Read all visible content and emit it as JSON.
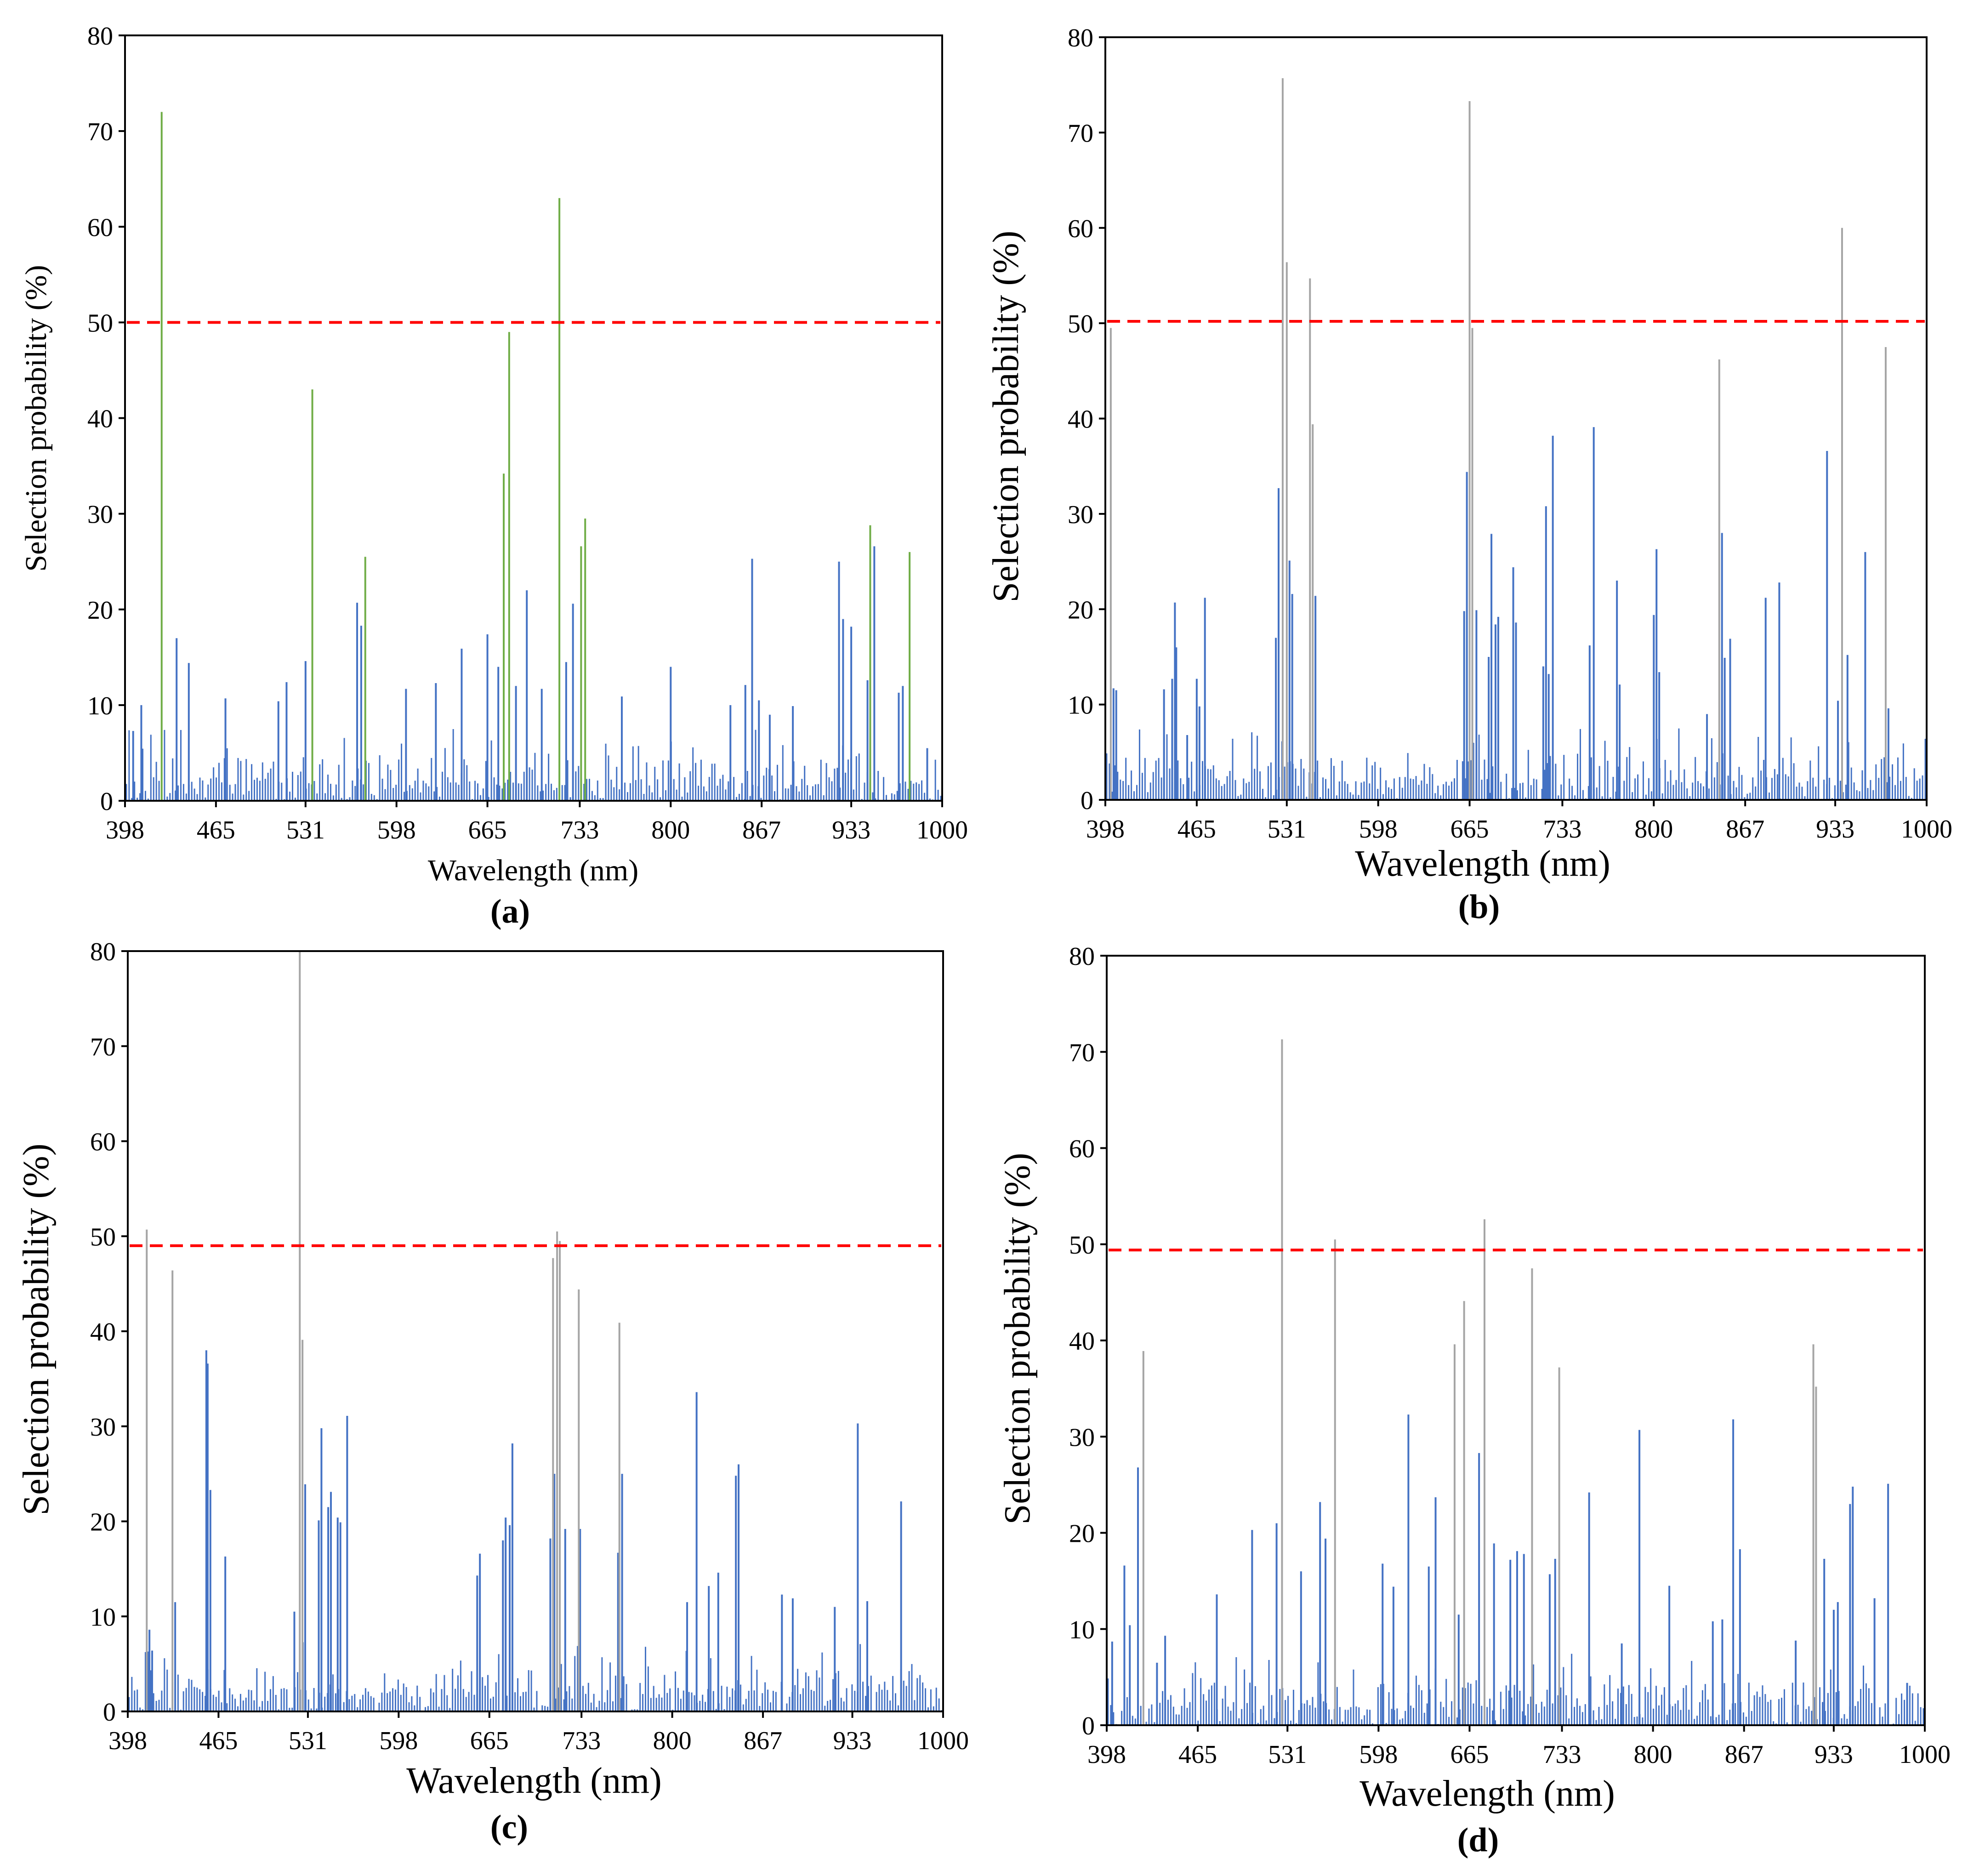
{
  "colors": {
    "regular_bar": "#4472C4",
    "a_highlight": "#70AD47",
    "gray_highlight": "#A5A5A5",
    "threshold": "#FF0000",
    "axis": "#000000"
  },
  "chart_data": [
    {
      "type": "bar",
      "panel_label": "(a)",
      "xlabel": "Wavelength (nm)",
      "ylabel": "Selection probability (%)",
      "xlim": [
        398,
        1000
      ],
      "ylim": [
        0,
        80
      ],
      "x_ticks": [
        398,
        465,
        531,
        598,
        665,
        733,
        800,
        867,
        933,
        1000
      ],
      "y_ticks": [
        0,
        10,
        20,
        30,
        40,
        50,
        60,
        70,
        80
      ],
      "threshold": 50,
      "highlight_color_key": "a_highlight",
      "highlights": [
        {
          "x": 425,
          "y": 72
        },
        {
          "x": 536,
          "y": 43
        },
        {
          "x": 575,
          "y": 25.5
        },
        {
          "x": 677,
          "y": 34.2
        },
        {
          "x": 681,
          "y": 49
        },
        {
          "x": 718,
          "y": 63
        },
        {
          "x": 734,
          "y": 26.6
        },
        {
          "x": 737,
          "y": 29.5
        },
        {
          "x": 947,
          "y": 28.8
        },
        {
          "x": 976,
          "y": 26
        }
      ],
      "peaks": [
        {
          "x": 398,
          "y": 7
        },
        {
          "x": 404,
          "y": 7.3
        },
        {
          "x": 410,
          "y": 10
        },
        {
          "x": 436,
          "y": 17
        },
        {
          "x": 445,
          "y": 14.4
        },
        {
          "x": 472,
          "y": 10.7
        },
        {
          "x": 511,
          "y": 10.4
        },
        {
          "x": 517,
          "y": 12.4
        },
        {
          "x": 531,
          "y": 14.6
        },
        {
          "x": 569,
          "y": 20.7
        },
        {
          "x": 572,
          "y": 18.3
        },
        {
          "x": 605,
          "y": 11.7
        },
        {
          "x": 627,
          "y": 12.3
        },
        {
          "x": 646,
          "y": 15.9
        },
        {
          "x": 665,
          "y": 17.4
        },
        {
          "x": 673,
          "y": 14
        },
        {
          "x": 686,
          "y": 12
        },
        {
          "x": 694,
          "y": 22
        },
        {
          "x": 705,
          "y": 11.7
        },
        {
          "x": 723,
          "y": 14.5
        },
        {
          "x": 728,
          "y": 20.6
        },
        {
          "x": 764,
          "y": 10.9
        },
        {
          "x": 800,
          "y": 14
        },
        {
          "x": 844,
          "y": 10
        },
        {
          "x": 855,
          "y": 12.1
        },
        {
          "x": 860,
          "y": 25.3
        },
        {
          "x": 865,
          "y": 10.5
        },
        {
          "x": 873,
          "y": 9
        },
        {
          "x": 890,
          "y": 9.9
        },
        {
          "x": 924,
          "y": 25
        },
        {
          "x": 927,
          "y": 19
        },
        {
          "x": 933,
          "y": 18.2
        },
        {
          "x": 945,
          "y": 12.6
        },
        {
          "x": 950,
          "y": 26.6
        },
        {
          "x": 968,
          "y": 11.3
        },
        {
          "x": 971,
          "y": 12
        },
        {
          "x": 989,
          "y": 5.5
        }
      ]
    },
    {
      "type": "bar",
      "panel_label": "(b)",
      "xlabel": "Wavelength (nm)",
      "ylabel": "Selection probability (%)",
      "xlim": [
        398,
        1000
      ],
      "ylim": [
        0,
        80
      ],
      "x_ticks": [
        398,
        465,
        531,
        598,
        665,
        733,
        800,
        867,
        933,
        1000
      ],
      "y_ticks": [
        0,
        10,
        20,
        30,
        40,
        50,
        60,
        70,
        80
      ],
      "threshold": 50.2,
      "highlight_color_key": "gray_highlight",
      "highlights": [
        {
          "x": 402,
          "y": 49.5
        },
        {
          "x": 528,
          "y": 75.7
        },
        {
          "x": 531,
          "y": 56.4
        },
        {
          "x": 548,
          "y": 54.7
        },
        {
          "x": 550,
          "y": 39.4
        },
        {
          "x": 665,
          "y": 73.3
        },
        {
          "x": 667,
          "y": 49.5
        },
        {
          "x": 848,
          "y": 46.2
        },
        {
          "x": 938,
          "y": 60
        },
        {
          "x": 970,
          "y": 47.5
        }
      ],
      "peaks": [
        {
          "x": 404,
          "y": 11.7
        },
        {
          "x": 406,
          "y": 11.5
        },
        {
          "x": 441,
          "y": 11.6
        },
        {
          "x": 447,
          "y": 12.7
        },
        {
          "x": 449,
          "y": 20.7
        },
        {
          "x": 450,
          "y": 16
        },
        {
          "x": 458,
          "y": 6.8
        },
        {
          "x": 465,
          "y": 12.7
        },
        {
          "x": 467,
          "y": 9.8
        },
        {
          "x": 471,
          "y": 21.2
        },
        {
          "x": 523,
          "y": 17
        },
        {
          "x": 525,
          "y": 32.7
        },
        {
          "x": 533,
          "y": 25.1
        },
        {
          "x": 535,
          "y": 21.6
        },
        {
          "x": 552,
          "y": 21.4
        },
        {
          "x": 661,
          "y": 19.8
        },
        {
          "x": 663,
          "y": 34.4
        },
        {
          "x": 670,
          "y": 19.9
        },
        {
          "x": 679,
          "y": 15
        },
        {
          "x": 681,
          "y": 27.9
        },
        {
          "x": 684,
          "y": 18.4
        },
        {
          "x": 686,
          "y": 19.2
        },
        {
          "x": 697,
          "y": 24.4
        },
        {
          "x": 699,
          "y": 18.6
        },
        {
          "x": 719,
          "y": 14
        },
        {
          "x": 721,
          "y": 30.8
        },
        {
          "x": 723,
          "y": 13.2
        },
        {
          "x": 726,
          "y": 38.2
        },
        {
          "x": 753,
          "y": 16.2
        },
        {
          "x": 756,
          "y": 39.1
        },
        {
          "x": 773,
          "y": 23
        },
        {
          "x": 775,
          "y": 12.1
        },
        {
          "x": 800,
          "y": 19.4
        },
        {
          "x": 802,
          "y": 26.3
        },
        {
          "x": 804,
          "y": 13.4
        },
        {
          "x": 839,
          "y": 9
        },
        {
          "x": 850,
          "y": 28
        },
        {
          "x": 852,
          "y": 14.9
        },
        {
          "x": 856,
          "y": 16.9
        },
        {
          "x": 882,
          "y": 21.2
        },
        {
          "x": 892,
          "y": 22.8
        },
        {
          "x": 927,
          "y": 36.6
        },
        {
          "x": 935,
          "y": 10.4
        },
        {
          "x": 942,
          "y": 15.2
        },
        {
          "x": 955,
          "y": 26
        },
        {
          "x": 972,
          "y": 9.6
        }
      ]
    },
    {
      "type": "bar",
      "panel_label": "(c)",
      "xlabel": "Wavelength (nm)",
      "ylabel": "Selection probability (%)",
      "xlim": [
        398,
        1000
      ],
      "ylim": [
        0,
        80
      ],
      "x_ticks": [
        398,
        465,
        531,
        598,
        665,
        733,
        800,
        867,
        933,
        1000
      ],
      "y_ticks": [
        0,
        10,
        20,
        30,
        40,
        50,
        60,
        70,
        80
      ],
      "threshold": 49,
      "highlight_color_key": "gray_highlight",
      "highlights": [
        {
          "x": 412,
          "y": 50.7
        },
        {
          "x": 431,
          "y": 46.4
        },
        {
          "x": 525,
          "y": 80
        },
        {
          "x": 527,
          "y": 39.1
        },
        {
          "x": 712,
          "y": 47.7
        },
        {
          "x": 715,
          "y": 50.5
        },
        {
          "x": 717,
          "y": 49.5
        },
        {
          "x": 731,
          "y": 44.4
        },
        {
          "x": 761,
          "y": 40.9
        }
      ],
      "peaks": [
        {
          "x": 414,
          "y": 8.6
        },
        {
          "x": 416,
          "y": 6.4
        },
        {
          "x": 433,
          "y": 11.5
        },
        {
          "x": 456,
          "y": 38
        },
        {
          "x": 457,
          "y": 36.6
        },
        {
          "x": 459,
          "y": 23.3
        },
        {
          "x": 470,
          "y": 16.3
        },
        {
          "x": 521,
          "y": 10.5
        },
        {
          "x": 529,
          "y": 23.9
        },
        {
          "x": 539,
          "y": 20.1
        },
        {
          "x": 541,
          "y": 29.8
        },
        {
          "x": 546,
          "y": 21.5
        },
        {
          "x": 548,
          "y": 23.1
        },
        {
          "x": 553,
          "y": 20.4
        },
        {
          "x": 555,
          "y": 19.9
        },
        {
          "x": 560,
          "y": 31.1
        },
        {
          "x": 656,
          "y": 14.3
        },
        {
          "x": 658,
          "y": 16.6
        },
        {
          "x": 675,
          "y": 18
        },
        {
          "x": 677,
          "y": 20.4
        },
        {
          "x": 680,
          "y": 19.6
        },
        {
          "x": 682,
          "y": 28.2
        },
        {
          "x": 710,
          "y": 18.2
        },
        {
          "x": 713,
          "y": 25
        },
        {
          "x": 721,
          "y": 19.2
        },
        {
          "x": 732,
          "y": 19.2
        },
        {
          "x": 760,
          "y": 16.7
        },
        {
          "x": 763,
          "y": 25
        },
        {
          "x": 811,
          "y": 11.5
        },
        {
          "x": 818,
          "y": 33.6
        },
        {
          "x": 827,
          "y": 13.2
        },
        {
          "x": 834,
          "y": 14.6
        },
        {
          "x": 847,
          "y": 24.8
        },
        {
          "x": 849,
          "y": 26
        },
        {
          "x": 881,
          "y": 12.3
        },
        {
          "x": 889,
          "y": 11.9
        },
        {
          "x": 920,
          "y": 11
        },
        {
          "x": 937,
          "y": 30.3
        },
        {
          "x": 944,
          "y": 11.6
        },
        {
          "x": 969,
          "y": 22.1
        }
      ]
    },
    {
      "type": "bar",
      "panel_label": "(d)",
      "xlabel": "Wavelength (nm)",
      "ylabel": "Selection probability (%)",
      "xlim": [
        398,
        1000
      ],
      "ylim": [
        0,
        80
      ],
      "x_ticks": [
        398,
        465,
        531,
        598,
        665,
        733,
        800,
        867,
        933,
        1000
      ],
      "y_ticks": [
        0,
        10,
        20,
        30,
        40,
        50,
        60,
        70,
        80
      ],
      "threshold": 49.4,
      "highlight_color_key": "gray_highlight",
      "highlights": [
        {
          "x": 425,
          "y": 38.9
        },
        {
          "x": 527,
          "y": 71.3
        },
        {
          "x": 566,
          "y": 50.5
        },
        {
          "x": 654,
          "y": 39.6
        },
        {
          "x": 661,
          "y": 44.1
        },
        {
          "x": 676,
          "y": 52.6
        },
        {
          "x": 711,
          "y": 47.5
        },
        {
          "x": 731,
          "y": 37.2
        },
        {
          "x": 918,
          "y": 39.6
        },
        {
          "x": 920,
          "y": 35.2
        }
      ],
      "peaks": [
        {
          "x": 402,
          "y": 8.7
        },
        {
          "x": 411,
          "y": 16.6
        },
        {
          "x": 415,
          "y": 10.4
        },
        {
          "x": 421,
          "y": 26.8
        },
        {
          "x": 435,
          "y": 6.5
        },
        {
          "x": 441,
          "y": 9.3
        },
        {
          "x": 479,
          "y": 13.6
        },
        {
          "x": 505,
          "y": 20.3
        },
        {
          "x": 523,
          "y": 21
        },
        {
          "x": 541,
          "y": 16
        },
        {
          "x": 555,
          "y": 23.2
        },
        {
          "x": 559,
          "y": 19.4
        },
        {
          "x": 601,
          "y": 16.8
        },
        {
          "x": 609,
          "y": 14.4
        },
        {
          "x": 620,
          "y": 32.3
        },
        {
          "x": 635,
          "y": 16.5
        },
        {
          "x": 640,
          "y": 23.7
        },
        {
          "x": 657,
          "y": 11.5
        },
        {
          "x": 672,
          "y": 28.3
        },
        {
          "x": 683,
          "y": 18.9
        },
        {
          "x": 695,
          "y": 17.2
        },
        {
          "x": 700,
          "y": 18.1
        },
        {
          "x": 705,
          "y": 17.8
        },
        {
          "x": 724,
          "y": 15.7
        },
        {
          "x": 728,
          "y": 17.3
        },
        {
          "x": 753,
          "y": 24.2
        },
        {
          "x": 777,
          "y": 8.5
        },
        {
          "x": 790,
          "y": 30.7
        },
        {
          "x": 812,
          "y": 14.5
        },
        {
          "x": 844,
          "y": 10.8
        },
        {
          "x": 851,
          "y": 11
        },
        {
          "x": 859,
          "y": 31.8
        },
        {
          "x": 864,
          "y": 18.3
        },
        {
          "x": 905,
          "y": 8.8
        },
        {
          "x": 926,
          "y": 17.3
        },
        {
          "x": 933,
          "y": 12
        },
        {
          "x": 936,
          "y": 12.8
        },
        {
          "x": 945,
          "y": 23
        },
        {
          "x": 947,
          "y": 24.8
        },
        {
          "x": 963,
          "y": 13.2
        },
        {
          "x": 973,
          "y": 25.1
        },
        {
          "x": 987,
          "y": 4.4
        }
      ]
    }
  ]
}
